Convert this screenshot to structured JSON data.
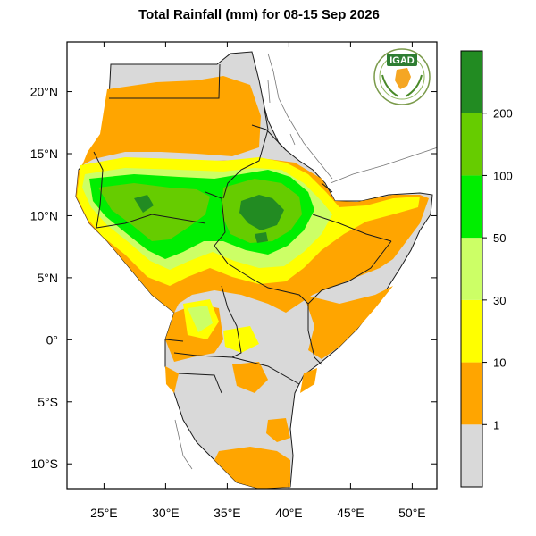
{
  "title": "Total Rainfall (mm) for 08-15 Sep 2026",
  "logo": {
    "text": "IGAD",
    "icon": "igad-logo"
  },
  "colors": {
    "ocean": "#ffffff",
    "frame": "#000000",
    "no_rain": "#d9d9d9",
    "border": "#1a1a1a"
  },
  "map": {
    "lon_range": [
      22,
      52
    ],
    "lat_range": [
      -12,
      24
    ],
    "lon_ticks": [
      {
        "value": 25,
        "label": "25°E"
      },
      {
        "value": 30,
        "label": "30°E"
      },
      {
        "value": 35,
        "label": "35°E"
      },
      {
        "value": 40,
        "label": "40°E"
      },
      {
        "value": 45,
        "label": "45°E"
      },
      {
        "value": 50,
        "label": "50°E"
      }
    ],
    "lat_ticks": [
      {
        "value": 20,
        "label": "20°N"
      },
      {
        "value": 15,
        "label": "15°N"
      },
      {
        "value": 10,
        "label": "10°N"
      },
      {
        "value": 5,
        "label": "5°N"
      },
      {
        "value": 0,
        "label": "0°"
      },
      {
        "value": -5,
        "label": "5°S"
      },
      {
        "value": -10,
        "label": "10°S"
      }
    ]
  },
  "colorbar": {
    "bins": [
      {
        "color": "#d9d9d9"
      },
      {
        "color": "#ffa500"
      },
      {
        "color": "#ffff00"
      },
      {
        "color": "#ccff66"
      },
      {
        "color": "#00ee00"
      },
      {
        "color": "#66cc00"
      },
      {
        "color": "#228b22"
      }
    ],
    "labels": [
      "1",
      "10",
      "30",
      "50",
      "100",
      "200"
    ]
  }
}
